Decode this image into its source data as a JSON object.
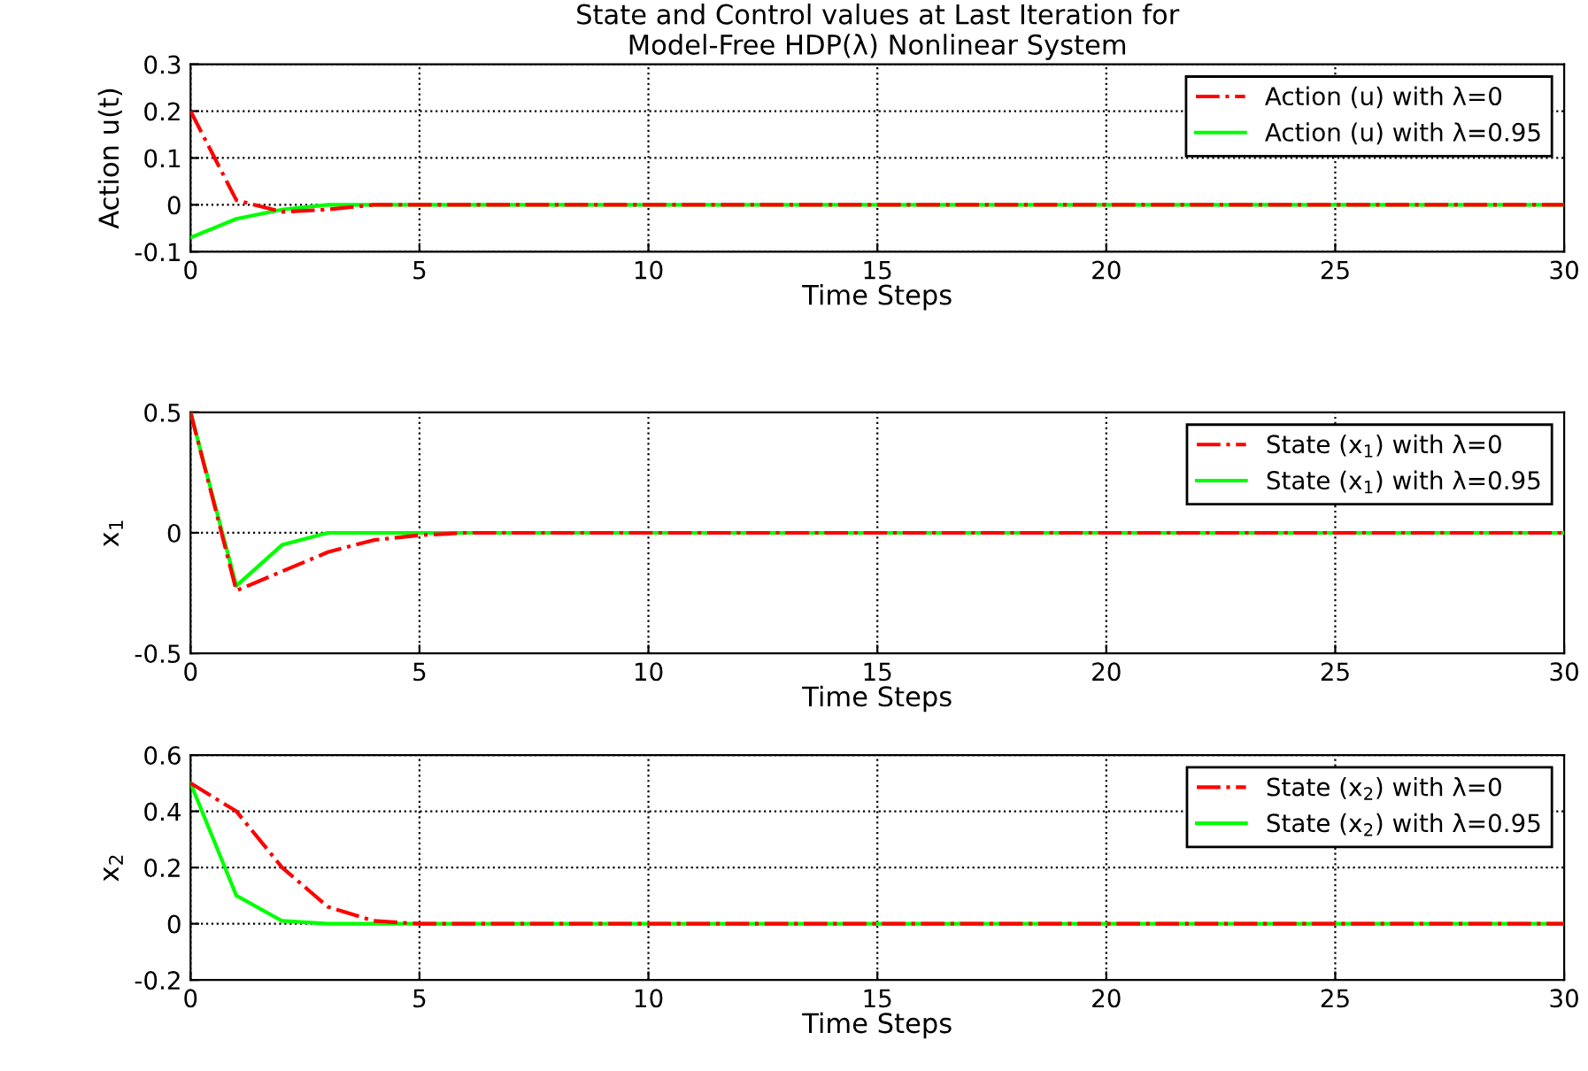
{
  "chart_data": [
    {
      "type": "line",
      "title": "State and Control values at Last Iteration for\nModel-Free HDP(λ) Nonlinear System",
      "xlabel": "Time Steps",
      "ylabel": "Action u(t)",
      "x": [
        0,
        1,
        2,
        3,
        4,
        5,
        6,
        7,
        8,
        9,
        10,
        11,
        12,
        13,
        14,
        15,
        16,
        17,
        18,
        19,
        20,
        21,
        22,
        23,
        24,
        25,
        26,
        27,
        28,
        29,
        30
      ],
      "xlim": [
        0,
        30
      ],
      "xticks": [
        0,
        5,
        10,
        15,
        20,
        25,
        30
      ],
      "ylim": [
        -0.1,
        0.3
      ],
      "yticks": [
        -0.1,
        0,
        0.1,
        0.2,
        0.3
      ],
      "grid": true,
      "legend": "top right",
      "series": [
        {
          "name": "Action (u) with λ=0",
          "color": "#ff0000",
          "line_style": "dashdot",
          "values": [
            0.2,
            0.01,
            -0.015,
            -0.01,
            0,
            0,
            0,
            0,
            0,
            0,
            0,
            0,
            0,
            0,
            0,
            0,
            0,
            0,
            0,
            0,
            0,
            0,
            0,
            0,
            0,
            0,
            0,
            0,
            0,
            0,
            0
          ]
        },
        {
          "name": "Action (u) with λ=0.95",
          "color": "#00ff00",
          "line_style": "solid",
          "values": [
            -0.07,
            -0.03,
            -0.01,
            0,
            0,
            0,
            0,
            0,
            0,
            0,
            0,
            0,
            0,
            0,
            0,
            0,
            0,
            0,
            0,
            0,
            0,
            0,
            0,
            0,
            0,
            0,
            0,
            0,
            0,
            0,
            0
          ]
        }
      ]
    },
    {
      "type": "line",
      "xlabel": "Time Steps",
      "ylabel": "x$_{1}$",
      "x": [
        0,
        1,
        2,
        3,
        4,
        5,
        6,
        7,
        8,
        9,
        10,
        11,
        12,
        13,
        14,
        15,
        16,
        17,
        18,
        19,
        20,
        21,
        22,
        23,
        24,
        25,
        26,
        27,
        28,
        29,
        30
      ],
      "xlim": [
        0,
        30
      ],
      "xticks": [
        0,
        5,
        10,
        15,
        20,
        25,
        30
      ],
      "ylim": [
        -0.5,
        0.5
      ],
      "yticks": [
        -0.5,
        0,
        0.5
      ],
      "grid": true,
      "legend": "top right",
      "series": [
        {
          "name": "State (x$_{1}$) with λ=0",
          "color": "#ff0000",
          "line_style": "dashdot",
          "values": [
            0.5,
            -0.24,
            -0.16,
            -0.08,
            -0.03,
            -0.01,
            0,
            0,
            0,
            0,
            0,
            0,
            0,
            0,
            0,
            0,
            0,
            0,
            0,
            0,
            0,
            0,
            0,
            0,
            0,
            0,
            0,
            0,
            0,
            0,
            0
          ]
        },
        {
          "name": "State (x$_{1}$) with λ=0.95",
          "color": "#00ff00",
          "line_style": "solid",
          "values": [
            0.5,
            -0.22,
            -0.05,
            0,
            0,
            0,
            0,
            0,
            0,
            0,
            0,
            0,
            0,
            0,
            0,
            0,
            0,
            0,
            0,
            0,
            0,
            0,
            0,
            0,
            0,
            0,
            0,
            0,
            0,
            0,
            0
          ]
        }
      ]
    },
    {
      "type": "line",
      "xlabel": "Time Steps",
      "ylabel": "x$_{2}$",
      "x": [
        0,
        1,
        2,
        3,
        4,
        5,
        6,
        7,
        8,
        9,
        10,
        11,
        12,
        13,
        14,
        15,
        16,
        17,
        18,
        19,
        20,
        21,
        22,
        23,
        24,
        25,
        26,
        27,
        28,
        29,
        30
      ],
      "xlim": [
        0,
        30
      ],
      "xticks": [
        0,
        5,
        10,
        15,
        20,
        25,
        30
      ],
      "ylim": [
        -0.2,
        0.6
      ],
      "yticks": [
        -0.2,
        0,
        0.2,
        0.4,
        0.6
      ],
      "grid": true,
      "legend": "top right",
      "series": [
        {
          "name": "State (x$_{2}$) with λ=0",
          "color": "#ff0000",
          "line_style": "dashdot",
          "values": [
            0.5,
            0.4,
            0.2,
            0.06,
            0.01,
            0,
            0,
            0,
            0,
            0,
            0,
            0,
            0,
            0,
            0,
            0,
            0,
            0,
            0,
            0,
            0,
            0,
            0,
            0,
            0,
            0,
            0,
            0,
            0,
            0,
            0
          ]
        },
        {
          "name": "State (x$_{2}$) with λ=0.95",
          "color": "#00ff00",
          "line_style": "solid",
          "values": [
            0.5,
            0.1,
            0.01,
            0,
            0,
            0,
            0,
            0,
            0,
            0,
            0,
            0,
            0,
            0,
            0,
            0,
            0,
            0,
            0,
            0,
            0,
            0,
            0,
            0,
            0,
            0,
            0,
            0,
            0,
            0,
            0
          ]
        }
      ]
    }
  ]
}
